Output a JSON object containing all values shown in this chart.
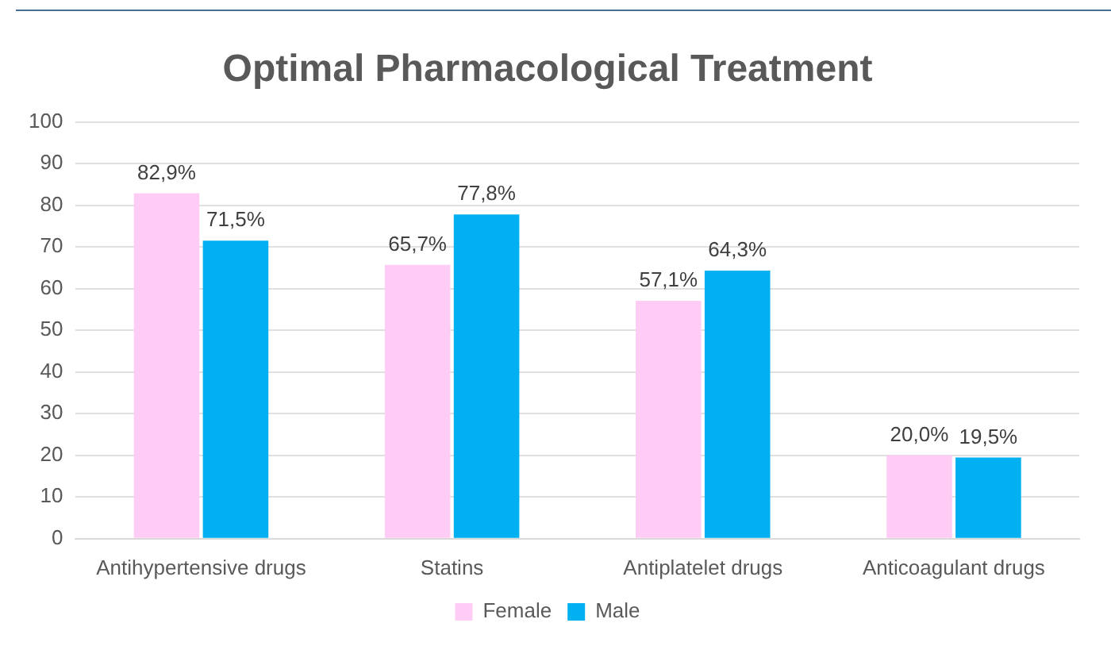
{
  "chart_data": {
    "type": "bar",
    "title": "Optimal Pharmacological Treatment",
    "categories": [
      "Antihypertensive drugs",
      "Statins",
      "Antiplatelet drugs",
      "Anticoagulant drugs"
    ],
    "series": [
      {
        "name": "Female",
        "color": "#ffccf5",
        "values": [
          82.9,
          65.7,
          57.1,
          20.0
        ],
        "value_labels": [
          "82,9%",
          "65,7%",
          "57,1%",
          "20,0%"
        ]
      },
      {
        "name": "Male",
        "color": "#00b0f0",
        "values": [
          71.5,
          77.8,
          64.3,
          19.5
        ],
        "value_labels": [
          "71,5%",
          "77,8%",
          "64,3%",
          "19,5%"
        ]
      }
    ],
    "ylim": [
      0,
      100
    ],
    "yticks": [
      0,
      10,
      20,
      30,
      40,
      50,
      60,
      70,
      80,
      90,
      100
    ],
    "grid": "y",
    "legend": "bottom"
  }
}
